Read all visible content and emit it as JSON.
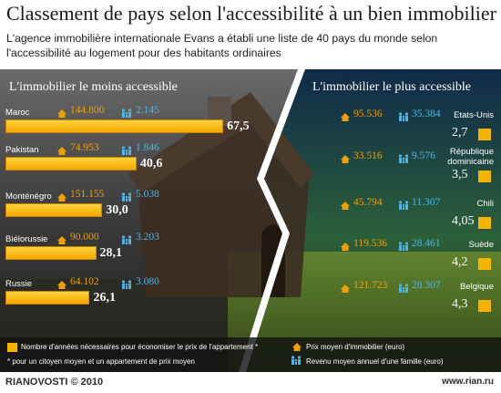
{
  "title": "Classement de pays selon l'accessibilité à un bien immobilier",
  "subtitle": "L'agence immobilière internationale Evans a établi une liste de 40 pays du monde selon l'accessibilité au logement pour des habitants ordinaires",
  "left_panel_title": "L'immobilier le moins accessible",
  "right_panel_title": "L'immobilier le plus accessible",
  "chart_data": {
    "type": "bar",
    "least_accessible": [
      {
        "country": "Maroc",
        "price": "144.800",
        "income": "2.145",
        "years": 67.5,
        "years_label": "67,5"
      },
      {
        "country": "Pakistan",
        "price": "74.953",
        "income": "1.846",
        "years": 40.6,
        "years_label": "40,6"
      },
      {
        "country": "Monténégro",
        "price": "151.155",
        "income": "5.038",
        "years": 30.0,
        "years_label": "30,0"
      },
      {
        "country": "Biélorussie",
        "price": "90.000",
        "income": "3.203",
        "years": 28.1,
        "years_label": "28,1"
      },
      {
        "country": "Russie",
        "price": "64.102",
        "income": "3.080",
        "years": 26.1,
        "years_label": "26,1"
      }
    ],
    "most_accessible": [
      {
        "country": "Etats-Unis",
        "price": "95.536",
        "income": "35.384",
        "years": 2.7,
        "years_label": "2,7"
      },
      {
        "country": "République dominicaine",
        "price": "33.516",
        "income": "9.576",
        "years": 3.5,
        "years_label": "3,5"
      },
      {
        "country": "Chili",
        "price": "45.794",
        "income": "11.307",
        "years": 4.05,
        "years_label": "4,05"
      },
      {
        "country": "Suède",
        "price": "119.536",
        "income": "28.461",
        "years": 4.2,
        "years_label": "4,2"
      },
      {
        "country": "Belgique",
        "price": "121.723",
        "income": "28.307",
        "years": 4.3,
        "years_label": "4,3"
      }
    ],
    "xlim": [
      0,
      70
    ]
  },
  "legend": {
    "years": "Nombre d'années nécessaires pour économiser le prix de l'appartement *",
    "price": "Prix moyen d'immobilier (euro)",
    "income": "Revenu moyen annuel d'une famille (euro)",
    "footnote": "* pour un citoyen moyen et un appartement de prix moyen"
  },
  "footer": {
    "brand": "RIANOVOSTI © 2010",
    "site": "www.rian.ru"
  },
  "colors": {
    "bar": "#f6b000",
    "price": "#f0a000",
    "income": "#4fb6e3"
  }
}
